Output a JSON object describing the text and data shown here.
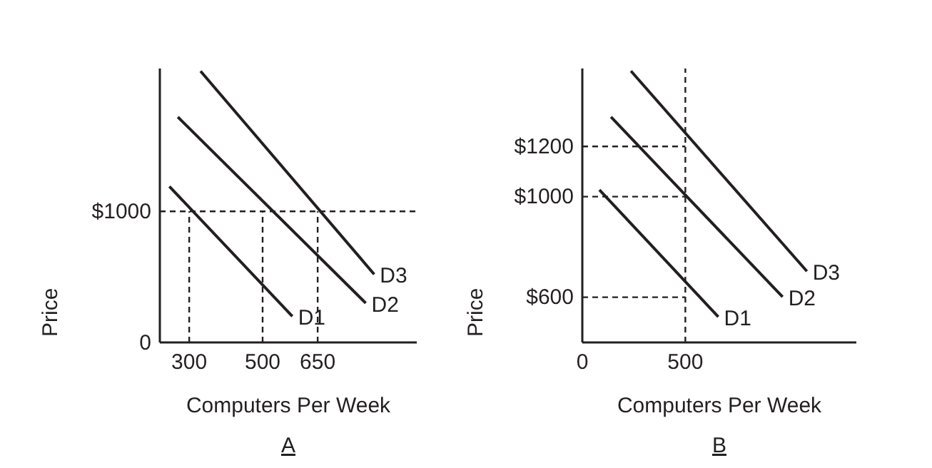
{
  "chart_data": [
    {
      "type": "line",
      "title": "A",
      "xlabel": "Computers Per Week",
      "ylabel": "Price",
      "xlim": [
        220,
        920
      ],
      "ylim": [
        0,
        2090
      ],
      "xticks": [
        300,
        500,
        650
      ],
      "yticks": [
        0,
        {
          "value": 1000,
          "label": "$1000"
        }
      ],
      "grid": false,
      "legend": false,
      "marker": "none",
      "line_style": "solid",
      "series": [
        {
          "name": "D1",
          "color": "#231f20",
          "x": [
            246,
            581
          ],
          "values": [
            1190,
            200
          ]
        },
        {
          "name": "D2",
          "color": "#231f20",
          "x": [
            269,
            781
          ],
          "values": [
            1720,
            300
          ]
        },
        {
          "name": "D3",
          "color": "#231f20",
          "x": [
            331,
            804
          ],
          "values": [
            2070,
            520
          ]
        }
      ],
      "ref_lines": [
        {
          "axis": "y",
          "value": 1000,
          "line_style": "dashed"
        },
        {
          "axis": "x",
          "value": 300,
          "line_style": "dashed"
        },
        {
          "axis": "x",
          "value": 500,
          "line_style": "dashed"
        },
        {
          "axis": "x",
          "value": 650,
          "line_style": "dashed"
        }
      ]
    },
    {
      "type": "line",
      "title": "B",
      "xlabel": "Computers Per Week",
      "ylabel": "Price",
      "xlim": [
        0,
        1330
      ],
      "ylim": [
        420,
        1510
      ],
      "xticks": [
        0,
        500
      ],
      "yticks": [
        {
          "value": 600,
          "label": "$600"
        },
        {
          "value": 1000,
          "label": "$1000"
        },
        {
          "value": 1200,
          "label": "$1200"
        }
      ],
      "grid": false,
      "legend": false,
      "marker": "none",
      "line_style": "solid",
      "series": [
        {
          "name": "D1",
          "color": "#231f20",
          "x": [
            83,
            660
          ],
          "values": [
            1027,
            522
          ]
        },
        {
          "name": "D2",
          "color": "#231f20",
          "x": [
            139,
            972
          ],
          "values": [
            1317,
            601
          ]
        },
        {
          "name": "D3",
          "color": "#231f20",
          "x": [
            236,
            1090
          ],
          "values": [
            1500,
            703
          ]
        }
      ],
      "ref_lines": [
        {
          "axis": "x",
          "value": 500,
          "line_style": "dashed"
        },
        {
          "axis": "y",
          "value": 600,
          "line_style": "dashed"
        },
        {
          "axis": "y",
          "value": 1000,
          "line_style": "dashed"
        },
        {
          "axis": "y",
          "value": 1200,
          "line_style": "dashed"
        }
      ]
    }
  ]
}
